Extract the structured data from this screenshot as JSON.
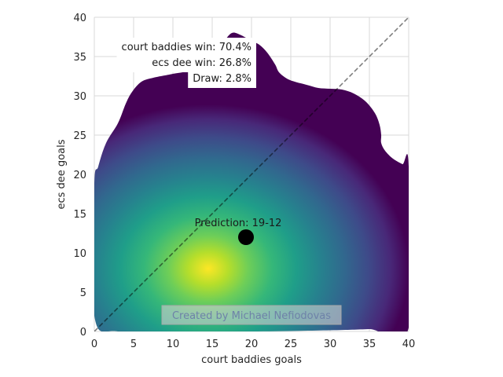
{
  "chart_data": {
    "type": "heatmap",
    "subtype": "kde-density-contour",
    "title": "",
    "xlabel": "court baddies goals",
    "ylabel": "ecs dee goals",
    "xlim": [
      0,
      40
    ],
    "ylim": [
      0,
      40
    ],
    "x_ticks": [
      0,
      5,
      10,
      15,
      20,
      25,
      30,
      35,
      40
    ],
    "y_ticks": [
      0,
      5,
      10,
      15,
      20,
      25,
      30,
      35,
      40
    ],
    "grid": true,
    "colormap": "viridis",
    "density_peak": {
      "x": 14.5,
      "y": 8
    },
    "reference_line": {
      "from": [
        0,
        0
      ],
      "to": [
        40,
        40
      ],
      "style": "dashed"
    },
    "prediction": {
      "x": 19.3,
      "y": 12,
      "label": "Prediction: 19-12"
    },
    "annotations": [
      "court baddies win: 70.4%",
      "ecs dee win: 26.8%",
      "Draw: 2.8%"
    ],
    "outcome_probabilities": [
      {
        "label": "court baddies win",
        "percent": 70.4
      },
      {
        "label": "ecs dee win",
        "percent": 26.8
      },
      {
        "label": "Draw",
        "percent": 2.8
      }
    ],
    "watermark": "Created by Michael Nefiodovas",
    "density_boundary": [
      [
        0,
        2
      ],
      [
        0,
        18.5
      ],
      [
        0.5,
        21
      ],
      [
        1.5,
        24
      ],
      [
        3,
        26.5
      ],
      [
        4,
        29
      ],
      [
        4.8,
        30.5
      ],
      [
        6,
        31.8
      ],
      [
        7.5,
        32.3
      ],
      [
        9,
        32.6
      ],
      [
        10,
        32.8
      ],
      [
        12,
        33.2
      ],
      [
        13.5,
        34.2
      ],
      [
        15,
        35.5
      ],
      [
        16.5,
        37
      ],
      [
        17.5,
        38
      ],
      [
        18.5,
        37.8
      ],
      [
        20,
        37
      ],
      [
        21,
        36.5
      ],
      [
        22,
        35.5
      ],
      [
        23,
        34
      ],
      [
        23.5,
        33
      ],
      [
        24.5,
        32.2
      ],
      [
        25.5,
        31.8
      ],
      [
        27,
        31.4
      ],
      [
        28.5,
        31
      ],
      [
        30,
        30.9
      ],
      [
        31.5,
        30.8
      ],
      [
        33,
        30.3
      ],
      [
        34.5,
        29.3
      ],
      [
        35.7,
        27.8
      ],
      [
        36.3,
        26.3
      ],
      [
        36.5,
        25
      ],
      [
        36.5,
        24
      ],
      [
        37,
        23
      ],
      [
        38,
        22
      ],
      [
        39.2,
        21.3
      ],
      [
        40,
        21
      ],
      [
        40,
        0.5
      ],
      [
        35,
        0.3
      ],
      [
        30,
        0.15
      ],
      [
        20,
        0
      ],
      [
        10,
        0
      ],
      [
        3,
        0
      ]
    ]
  }
}
